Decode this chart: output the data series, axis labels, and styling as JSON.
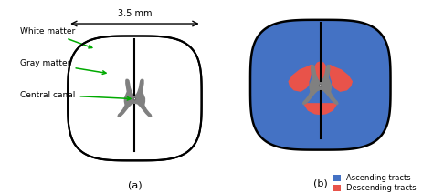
{
  "title_mm": "3.5 mm",
  "label_a": "(a)",
  "label_b": "(b)",
  "white_matter_label": "White matter",
  "gray_matter_label": "Gray matter",
  "central_canal_label": "Central canal",
  "ascending_label": "Ascending tracts",
  "descending_label": "Descending tracts",
  "gray_matter_color": "#808080",
  "blue_color": "#4472C4",
  "red_color": "#E8534A",
  "arrow_color": "#00aa00",
  "background": "#ffffff"
}
